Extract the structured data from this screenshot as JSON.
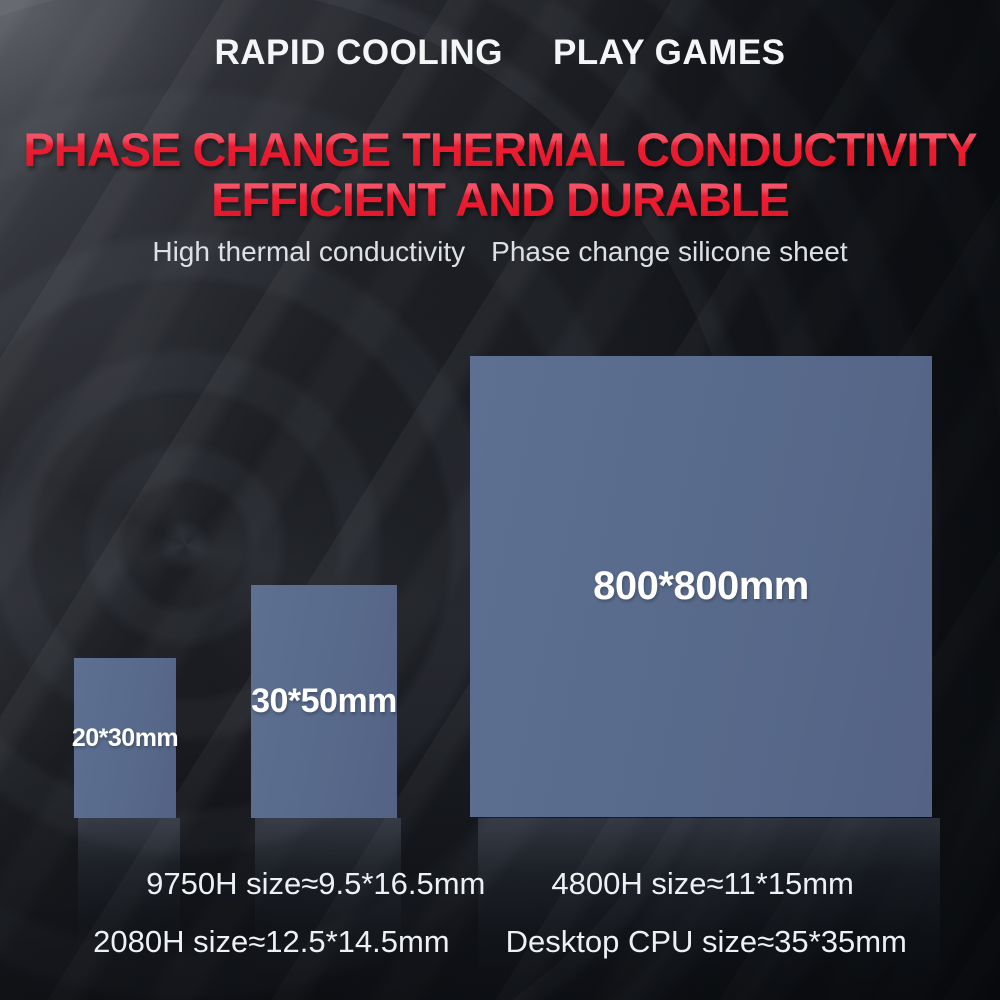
{
  "tagline": {
    "left": "RAPID COOLING",
    "right": "PLAY GAMES"
  },
  "title": {
    "line1": "PHASE CHANGE THERMAL CONDUCTIVITY",
    "line2": "EFFICIENT AND DURABLE"
  },
  "subtitle": {
    "left": "High thermal conductivity",
    "right": "Phase change silicone sheet"
  },
  "pads": [
    {
      "name": "small",
      "label": "20*30mm"
    },
    {
      "name": "medium",
      "label": "30*50mm"
    },
    {
      "name": "large",
      "label": "800*800mm"
    }
  ],
  "specs": [
    {
      "left": "9750H  size≈9.5*16.5mm",
      "right": "4800H size≈11*15mm"
    },
    {
      "left": "2080H size≈12.5*14.5mm",
      "right": "Desktop CPU size≈35*35mm"
    }
  ],
  "colors": {
    "background_base": "#101216",
    "pad_fill": "#586a8b",
    "title_red_top": "#fa5e72",
    "title_red_bottom": "#da1224",
    "text_white": "#f3f5f7",
    "subtitle_gray": "#dde1e5"
  }
}
